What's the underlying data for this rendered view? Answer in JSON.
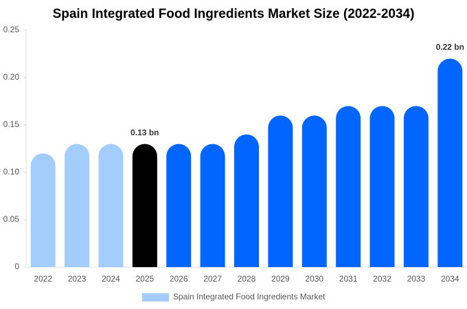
{
  "chart_data": {
    "type": "bar",
    "title": "Spain Integrated Food Ingredients Market Size (2022-2034)",
    "categories": [
      "2022",
      "2023",
      "2024",
      "2025",
      "2026",
      "2027",
      "2028",
      "2029",
      "2030",
      "2031",
      "2032",
      "2033",
      "2034"
    ],
    "series": [
      {
        "name": "Spain Integrated Food Ingredients Market",
        "color": "#a3cdfc",
        "colors": [
          "#a3cdfc",
          "#a3cdfc",
          "#a3cdfc",
          "#000000",
          "#0066ff",
          "#0066ff",
          "#0066ff",
          "#0066ff",
          "#0066ff",
          "#0066ff",
          "#0066ff",
          "#0066ff",
          "#0066ff"
        ],
        "values": [
          0.12,
          0.13,
          0.13,
          0.13,
          0.13,
          0.13,
          0.14,
          0.16,
          0.16,
          0.17,
          0.17,
          0.17,
          0.22
        ],
        "value_labels": [
          null,
          null,
          null,
          "0.13 bn",
          null,
          null,
          null,
          null,
          null,
          null,
          null,
          null,
          "0.22 bn"
        ]
      }
    ],
    "ylim": [
      0,
      0.25
    ],
    "yticks": [
      0,
      0.05,
      {
        "value": 0.1,
        "label": "0.10"
      },
      0.15,
      {
        "value": 0.2,
        "label": "0.20"
      },
      0.25
    ],
    "grid": false
  }
}
